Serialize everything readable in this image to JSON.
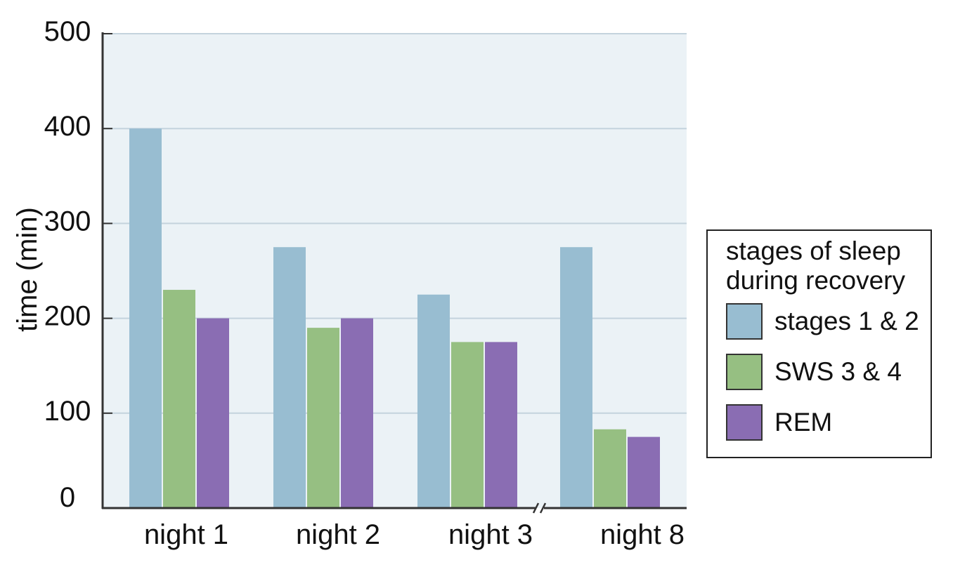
{
  "chart_data": {
    "type": "bar",
    "categories": [
      "night 1",
      "night 2",
      "night 3",
      "night 8"
    ],
    "series": [
      {
        "name": "stages 1 & 2",
        "color": "#98BDD1",
        "values": [
          400,
          275,
          225,
          275
        ]
      },
      {
        "name": "SWS 3 & 4",
        "color": "#96BF82",
        "values": [
          230,
          190,
          175,
          83
        ]
      },
      {
        "name": "REM",
        "color": "#8A6DB3",
        "values": [
          200,
          200,
          175,
          75
        ]
      }
    ],
    "ylabel": "time (min)",
    "xlabel": "",
    "ylim": [
      0,
      500
    ],
    "yticks": [
      0,
      100,
      200,
      300,
      400,
      500
    ],
    "grid": true,
    "axis_break_between": [
      "night 3",
      "night 8"
    ],
    "plot_background": "#EBF2F6",
    "legend": {
      "title_lines": [
        "stages of sleep",
        "during recovery"
      ],
      "placement": "right"
    }
  }
}
